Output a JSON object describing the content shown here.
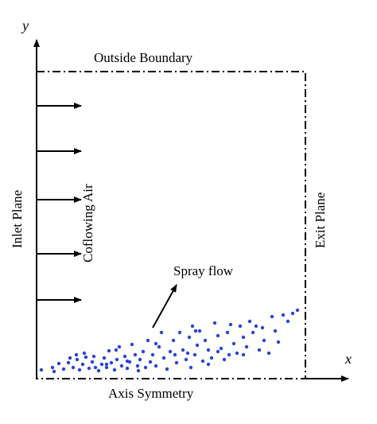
{
  "axes": {
    "x_label": "x",
    "y_label": "y"
  },
  "labels": {
    "outside_boundary": "Outside Boundary",
    "inlet_plane": "Inlet Plane",
    "coflowing_air": "Coflowing Air",
    "exit_plane": "Exit Plane",
    "spray_flow": "Spray flow",
    "axis_symmetry": "Axis Symmetry"
  },
  "colors": {
    "spray_droplets": "#2845d8",
    "lines": "#000000"
  }
}
